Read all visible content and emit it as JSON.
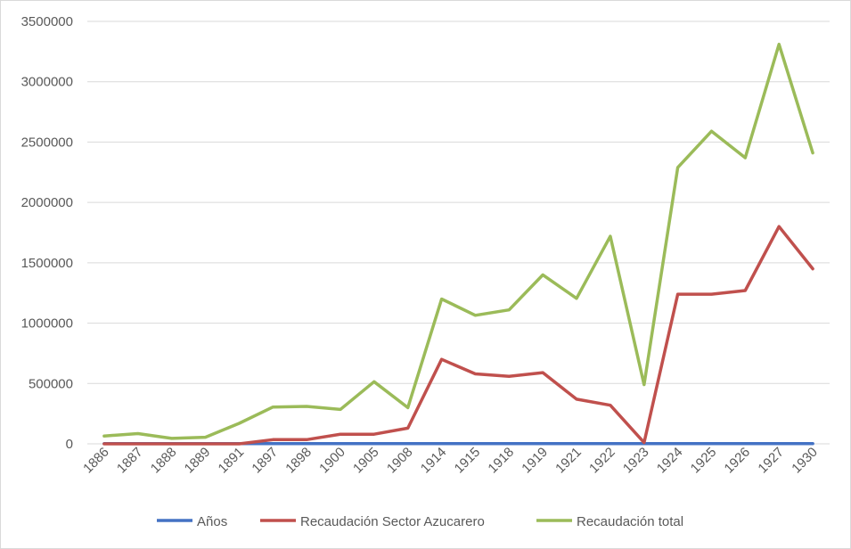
{
  "chart_data": {
    "type": "line",
    "title": "",
    "xlabel": "",
    "ylabel": "",
    "categories": [
      "1886",
      "1887",
      "1888",
      "1889",
      "1891",
      "1897",
      "1898",
      "1900",
      "1905",
      "1908",
      "1914",
      "1915",
      "1918",
      "1919",
      "1921",
      "1922",
      "1923",
      "1924",
      "1925",
      "1926",
      "1927",
      "1930"
    ],
    "ylim": [
      0,
      3500000
    ],
    "yticks": [
      "0",
      "500000",
      "1000000",
      "1500000",
      "2000000",
      "2500000",
      "3000000",
      "3500000"
    ],
    "grid": true,
    "legend_position": "bottom",
    "series": [
      {
        "name": "Años",
        "color": "#4472c4",
        "values": [
          1886,
          1887,
          1888,
          1889,
          1891,
          1897,
          1898,
          1900,
          1905,
          1908,
          1914,
          1915,
          1918,
          1919,
          1921,
          1922,
          1923,
          1924,
          1925,
          1926,
          1927,
          1930
        ]
      },
      {
        "name": "Recaudación Sector Azucarero",
        "color": "#c0504d",
        "values": [
          0,
          0,
          0,
          0,
          0,
          35000,
          35000,
          80000,
          80000,
          130000,
          700000,
          580000,
          560000,
          590000,
          370000,
          320000,
          10000,
          1240000,
          1240000,
          1270000,
          1800000,
          1450000
        ]
      },
      {
        "name": "Recaudación total",
        "color": "#9bbb59",
        "values": [
          65000,
          85000,
          45000,
          55000,
          170000,
          305000,
          310000,
          285000,
          515000,
          300000,
          1200000,
          1065000,
          1110000,
          1400000,
          1205000,
          1720000,
          490000,
          2290000,
          2590000,
          2370000,
          3310000,
          2410000
        ]
      }
    ]
  }
}
